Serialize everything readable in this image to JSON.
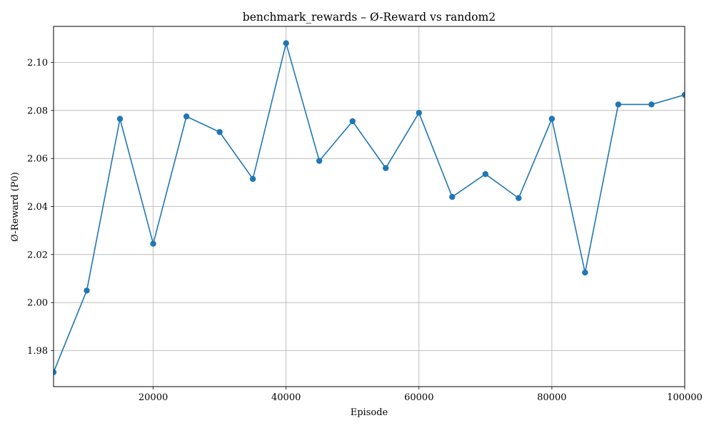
{
  "chart_data": {
    "type": "line",
    "title": "benchmark_rewards – Ø-Reward vs random2",
    "xlabel": "Episode",
    "ylabel": "Ø-Reward (P0)",
    "xlim": [
      5000,
      100000
    ],
    "ylim": [
      1.965,
      2.115
    ],
    "x_ticks": [
      20000,
      40000,
      60000,
      80000,
      100000
    ],
    "y_ticks": [
      1.98,
      2.0,
      2.02,
      2.04,
      2.06,
      2.08,
      2.1
    ],
    "x_tick_labels": [
      "20000",
      "40000",
      "60000",
      "80000",
      "100000"
    ],
    "y_tick_labels": [
      "1.98",
      "2.00",
      "2.02",
      "2.04",
      "2.06",
      "2.08",
      "2.10"
    ],
    "grid": true,
    "marker": "circle",
    "color": "#1f77b4",
    "x": [
      5000,
      10000,
      15000,
      20000,
      25000,
      30000,
      35000,
      40000,
      45000,
      50000,
      55000,
      60000,
      65000,
      70000,
      75000,
      80000,
      85000,
      90000,
      95000,
      100000
    ],
    "series": [
      {
        "values": [
          1.971,
          2.005,
          2.0765,
          2.0245,
          2.0775,
          2.071,
          2.0515,
          2.108,
          2.059,
          2.0755,
          2.056,
          2.079,
          2.044,
          2.0535,
          2.0435,
          2.0765,
          2.0125,
          2.0825,
          2.0825,
          2.0865
        ]
      }
    ]
  }
}
